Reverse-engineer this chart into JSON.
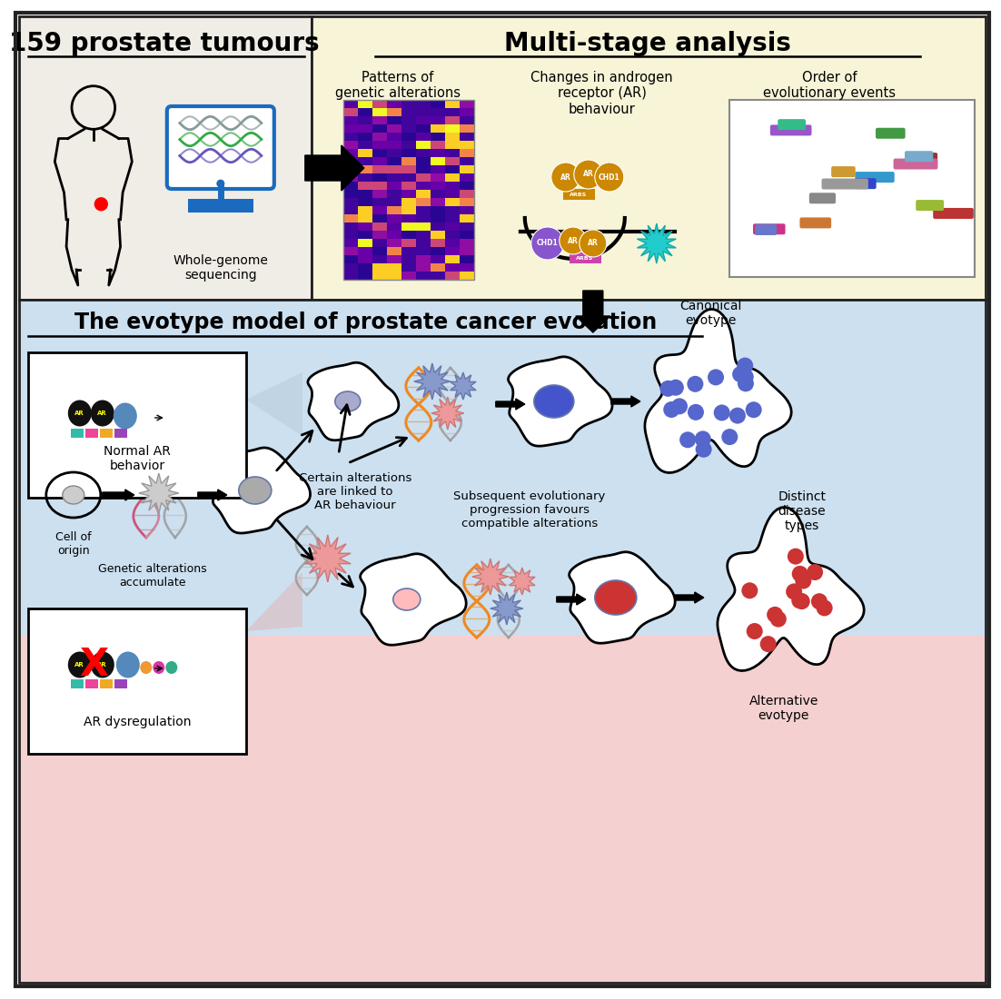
{
  "top_left_bg": "#f0ece6",
  "top_right_bg": "#f7f4d8",
  "bottom_blue_bg": "#cce0f0",
  "bottom_pink_bg": "#f5d0d0",
  "border_color": "#222222",
  "title1": "159 prostate tumours",
  "title2": "Multi-stage analysis",
  "title3": "The evotype model of prostate cancer evolution",
  "label_wgs": "Whole-genome\nsequencing",
  "label_pat": "Patterns of\ngenetic alterations",
  "label_ar": "Changes in androgen\nreceptor (AR)\nbehaviour",
  "label_evo": "Order of\nevolutionary events",
  "label_cell": "Cell of\norigin",
  "label_accum": "Genetic alterations\naccumulate",
  "label_normal": "Normal AR\nbehavior",
  "label_ar_dysreg": "AR dysregulation",
  "label_certain": "Certain alterations\nare linked to\nAR behaviour",
  "label_subseq": "Subsequent evolutionary\nprogression favours\ncompatible alterations",
  "label_distinct": "Distinct\ndisease\ntypes",
  "label_canonical": "Canonical\nevotype",
  "label_alternative": "Alternative\nevotype"
}
